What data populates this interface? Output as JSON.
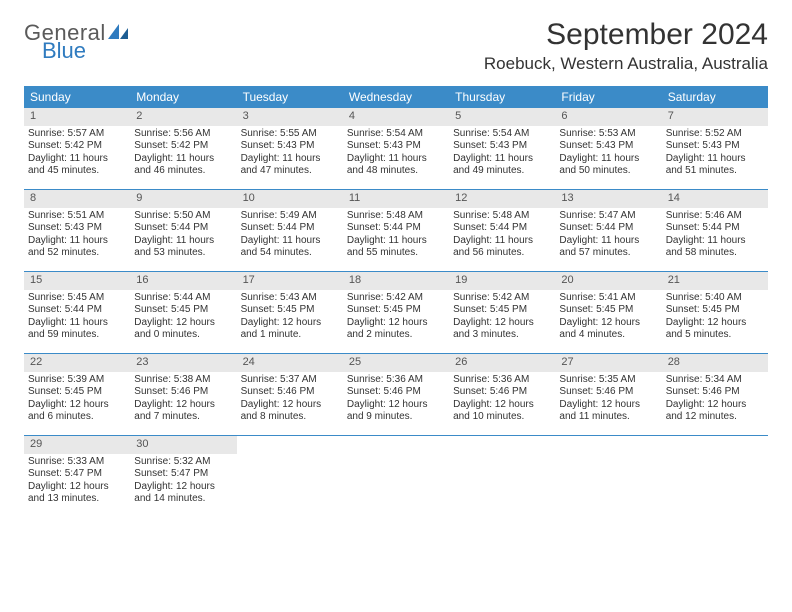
{
  "logo": {
    "text1": "General",
    "text2": "Blue",
    "sail_color": "#2f7bbf"
  },
  "title": "September 2024",
  "location": "Roebuck, Western Australia, Australia",
  "colors": {
    "header_bg": "#3b8bc8",
    "daynum_bg": "#e8e8e8",
    "rule": "#3b8bc8"
  },
  "dows": [
    "Sunday",
    "Monday",
    "Tuesday",
    "Wednesday",
    "Thursday",
    "Friday",
    "Saturday"
  ],
  "weeks": [
    [
      {
        "n": "1",
        "sr": "Sunrise: 5:57 AM",
        "ss": "Sunset: 5:42 PM",
        "dl": "Daylight: 11 hours and 45 minutes."
      },
      {
        "n": "2",
        "sr": "Sunrise: 5:56 AM",
        "ss": "Sunset: 5:42 PM",
        "dl": "Daylight: 11 hours and 46 minutes."
      },
      {
        "n": "3",
        "sr": "Sunrise: 5:55 AM",
        "ss": "Sunset: 5:43 PM",
        "dl": "Daylight: 11 hours and 47 minutes."
      },
      {
        "n": "4",
        "sr": "Sunrise: 5:54 AM",
        "ss": "Sunset: 5:43 PM",
        "dl": "Daylight: 11 hours and 48 minutes."
      },
      {
        "n": "5",
        "sr": "Sunrise: 5:54 AM",
        "ss": "Sunset: 5:43 PM",
        "dl": "Daylight: 11 hours and 49 minutes."
      },
      {
        "n": "6",
        "sr": "Sunrise: 5:53 AM",
        "ss": "Sunset: 5:43 PM",
        "dl": "Daylight: 11 hours and 50 minutes."
      },
      {
        "n": "7",
        "sr": "Sunrise: 5:52 AM",
        "ss": "Sunset: 5:43 PM",
        "dl": "Daylight: 11 hours and 51 minutes."
      }
    ],
    [
      {
        "n": "8",
        "sr": "Sunrise: 5:51 AM",
        "ss": "Sunset: 5:43 PM",
        "dl": "Daylight: 11 hours and 52 minutes."
      },
      {
        "n": "9",
        "sr": "Sunrise: 5:50 AM",
        "ss": "Sunset: 5:44 PM",
        "dl": "Daylight: 11 hours and 53 minutes."
      },
      {
        "n": "10",
        "sr": "Sunrise: 5:49 AM",
        "ss": "Sunset: 5:44 PM",
        "dl": "Daylight: 11 hours and 54 minutes."
      },
      {
        "n": "11",
        "sr": "Sunrise: 5:48 AM",
        "ss": "Sunset: 5:44 PM",
        "dl": "Daylight: 11 hours and 55 minutes."
      },
      {
        "n": "12",
        "sr": "Sunrise: 5:48 AM",
        "ss": "Sunset: 5:44 PM",
        "dl": "Daylight: 11 hours and 56 minutes."
      },
      {
        "n": "13",
        "sr": "Sunrise: 5:47 AM",
        "ss": "Sunset: 5:44 PM",
        "dl": "Daylight: 11 hours and 57 minutes."
      },
      {
        "n": "14",
        "sr": "Sunrise: 5:46 AM",
        "ss": "Sunset: 5:44 PM",
        "dl": "Daylight: 11 hours and 58 minutes."
      }
    ],
    [
      {
        "n": "15",
        "sr": "Sunrise: 5:45 AM",
        "ss": "Sunset: 5:44 PM",
        "dl": "Daylight: 11 hours and 59 minutes."
      },
      {
        "n": "16",
        "sr": "Sunrise: 5:44 AM",
        "ss": "Sunset: 5:45 PM",
        "dl": "Daylight: 12 hours and 0 minutes."
      },
      {
        "n": "17",
        "sr": "Sunrise: 5:43 AM",
        "ss": "Sunset: 5:45 PM",
        "dl": "Daylight: 12 hours and 1 minute."
      },
      {
        "n": "18",
        "sr": "Sunrise: 5:42 AM",
        "ss": "Sunset: 5:45 PM",
        "dl": "Daylight: 12 hours and 2 minutes."
      },
      {
        "n": "19",
        "sr": "Sunrise: 5:42 AM",
        "ss": "Sunset: 5:45 PM",
        "dl": "Daylight: 12 hours and 3 minutes."
      },
      {
        "n": "20",
        "sr": "Sunrise: 5:41 AM",
        "ss": "Sunset: 5:45 PM",
        "dl": "Daylight: 12 hours and 4 minutes."
      },
      {
        "n": "21",
        "sr": "Sunrise: 5:40 AM",
        "ss": "Sunset: 5:45 PM",
        "dl": "Daylight: 12 hours and 5 minutes."
      }
    ],
    [
      {
        "n": "22",
        "sr": "Sunrise: 5:39 AM",
        "ss": "Sunset: 5:45 PM",
        "dl": "Daylight: 12 hours and 6 minutes."
      },
      {
        "n": "23",
        "sr": "Sunrise: 5:38 AM",
        "ss": "Sunset: 5:46 PM",
        "dl": "Daylight: 12 hours and 7 minutes."
      },
      {
        "n": "24",
        "sr": "Sunrise: 5:37 AM",
        "ss": "Sunset: 5:46 PM",
        "dl": "Daylight: 12 hours and 8 minutes."
      },
      {
        "n": "25",
        "sr": "Sunrise: 5:36 AM",
        "ss": "Sunset: 5:46 PM",
        "dl": "Daylight: 12 hours and 9 minutes."
      },
      {
        "n": "26",
        "sr": "Sunrise: 5:36 AM",
        "ss": "Sunset: 5:46 PM",
        "dl": "Daylight: 12 hours and 10 minutes."
      },
      {
        "n": "27",
        "sr": "Sunrise: 5:35 AM",
        "ss": "Sunset: 5:46 PM",
        "dl": "Daylight: 12 hours and 11 minutes."
      },
      {
        "n": "28",
        "sr": "Sunrise: 5:34 AM",
        "ss": "Sunset: 5:46 PM",
        "dl": "Daylight: 12 hours and 12 minutes."
      }
    ],
    [
      {
        "n": "29",
        "sr": "Sunrise: 5:33 AM",
        "ss": "Sunset: 5:47 PM",
        "dl": "Daylight: 12 hours and 13 minutes."
      },
      {
        "n": "30",
        "sr": "Sunrise: 5:32 AM",
        "ss": "Sunset: 5:47 PM",
        "dl": "Daylight: 12 hours and 14 minutes."
      },
      null,
      null,
      null,
      null,
      null
    ]
  ]
}
